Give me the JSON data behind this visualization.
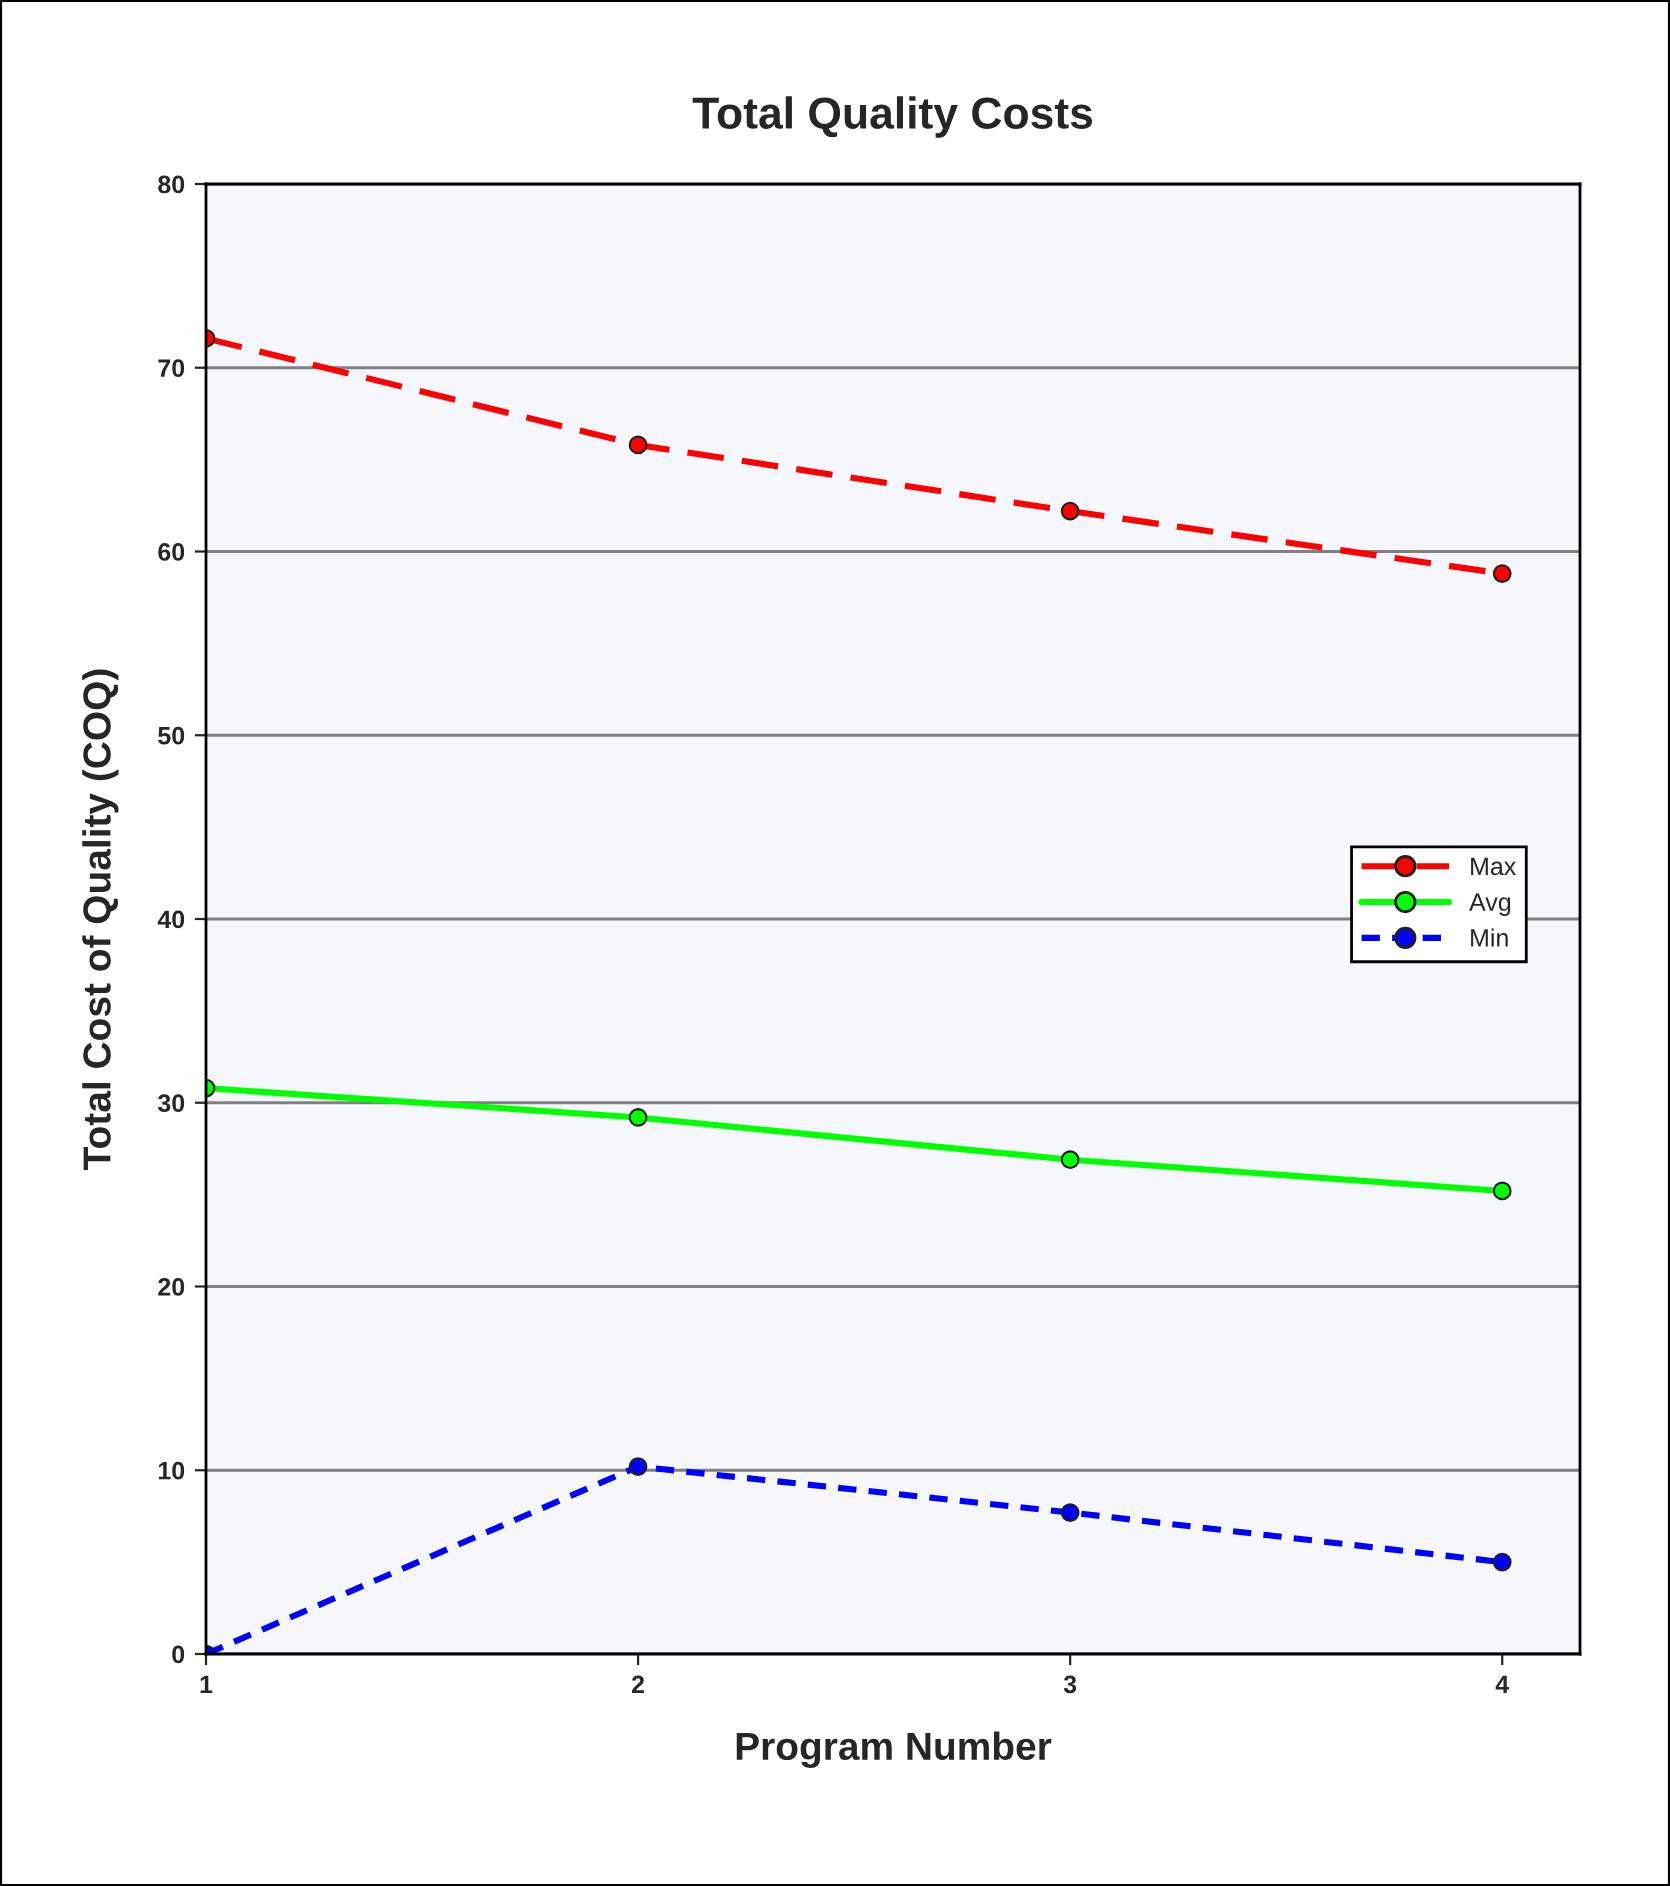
{
  "chart_data": {
    "type": "line",
    "title": "Total Quality Costs",
    "xlabel": "Program Number",
    "ylabel": "Total Cost of Quality (COQ)",
    "x": [
      1,
      2,
      3,
      4
    ],
    "series": [
      {
        "name": "Max",
        "color": "#ff0000",
        "values": [
          71.6,
          65.8,
          62.2,
          58.8
        ],
        "line_style": "dashed"
      },
      {
        "name": "Avg",
        "color": "#00ff00",
        "values": [
          30.8,
          29.2,
          26.9,
          25.2
        ],
        "line_style": "solid"
      },
      {
        "name": "Min",
        "color": "#0000ff",
        "values": [
          0,
          10.2,
          7.7,
          5.0
        ],
        "line_style": "dotted"
      }
    ],
    "xlim": [
      1,
      4.18
    ],
    "xticks": [
      1,
      2,
      3,
      4
    ],
    "ylim": [
      0,
      80
    ],
    "yticks": [
      0,
      10,
      20,
      30,
      40,
      50,
      60,
      70,
      80
    ],
    "grid": "y",
    "legend": "right",
    "marker": "circle"
  }
}
